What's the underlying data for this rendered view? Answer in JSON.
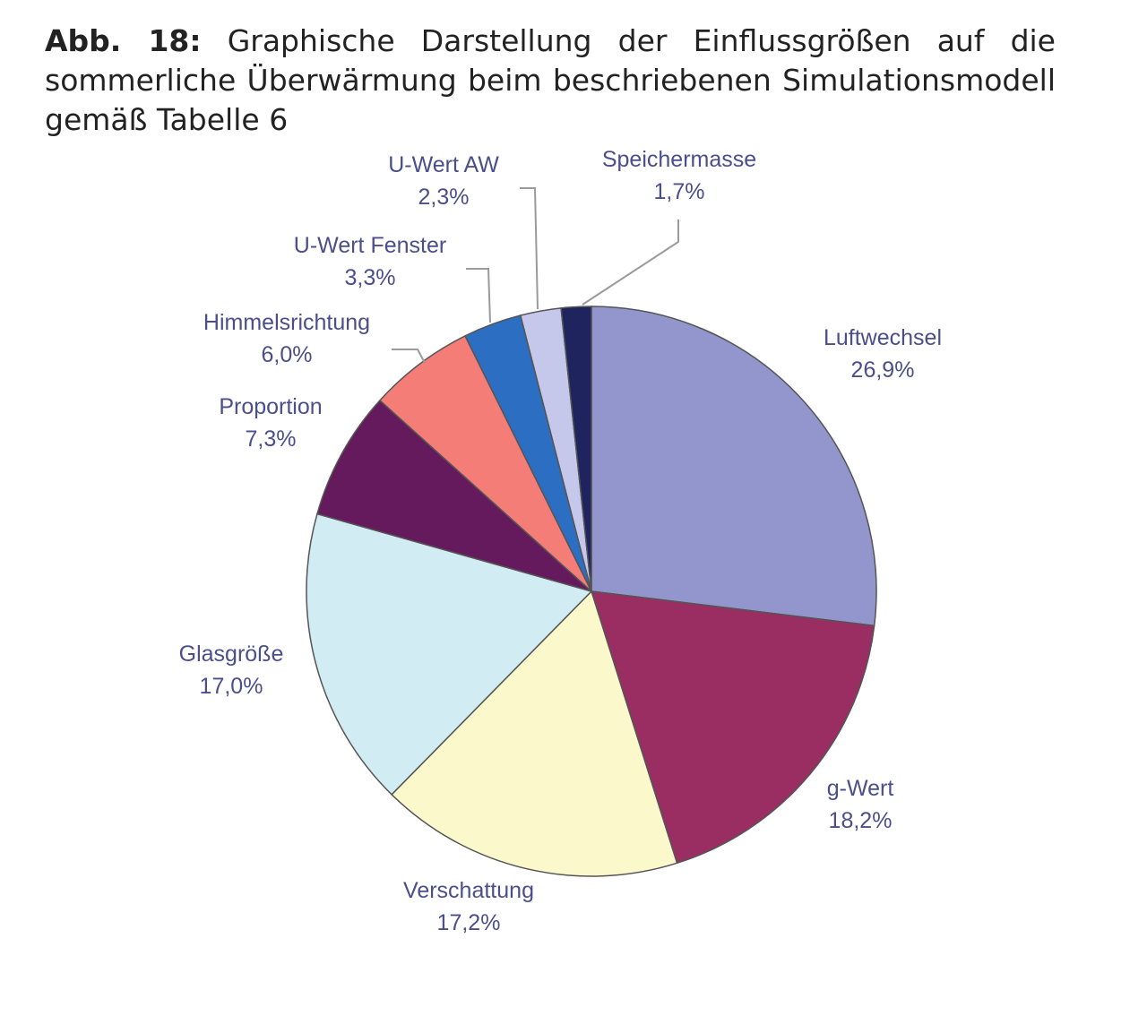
{
  "caption": {
    "label": "Abb. 18:",
    "text": "Graphische Darstellung der Einflussgrößen auf die sommerliche Überwärmung beim beschriebenen Simulationsmodell gemäß Tabelle 6"
  },
  "chart_data": {
    "type": "pie",
    "unit": "%",
    "start_angle_deg": 0,
    "direction": "clockwise",
    "slices": [
      {
        "label": "Luftwechsel",
        "value": 26.9,
        "value_label": "26,9%",
        "color": "#9396cc"
      },
      {
        "label": "g-Wert",
        "value": 18.2,
        "value_label": "18,2%",
        "color": "#9a2d62"
      },
      {
        "label": "Verschattung",
        "value": 17.2,
        "value_label": "17,2%",
        "color": "#fbf8cb"
      },
      {
        "label": "Glasgröße",
        "value": 17.0,
        "value_label": "17,0%",
        "color": "#d2ecf4"
      },
      {
        "label": "Proportion",
        "value": 7.3,
        "value_label": "7,3%",
        "color": "#661a5e"
      },
      {
        "label": "Himmelsrichtung",
        "value": 6.0,
        "value_label": "6,0%",
        "color": "#f47d77"
      },
      {
        "label": "U-Wert Fenster",
        "value": 3.3,
        "value_label": "3,3%",
        "color": "#2c6ec2"
      },
      {
        "label": "U-Wert AW",
        "value": 2.3,
        "value_label": "2,3%",
        "color": "#c5c8ea"
      },
      {
        "label": "Speichermasse",
        "value": 1.7,
        "value_label": "1,7%",
        "color": "#1f235e"
      }
    ]
  }
}
